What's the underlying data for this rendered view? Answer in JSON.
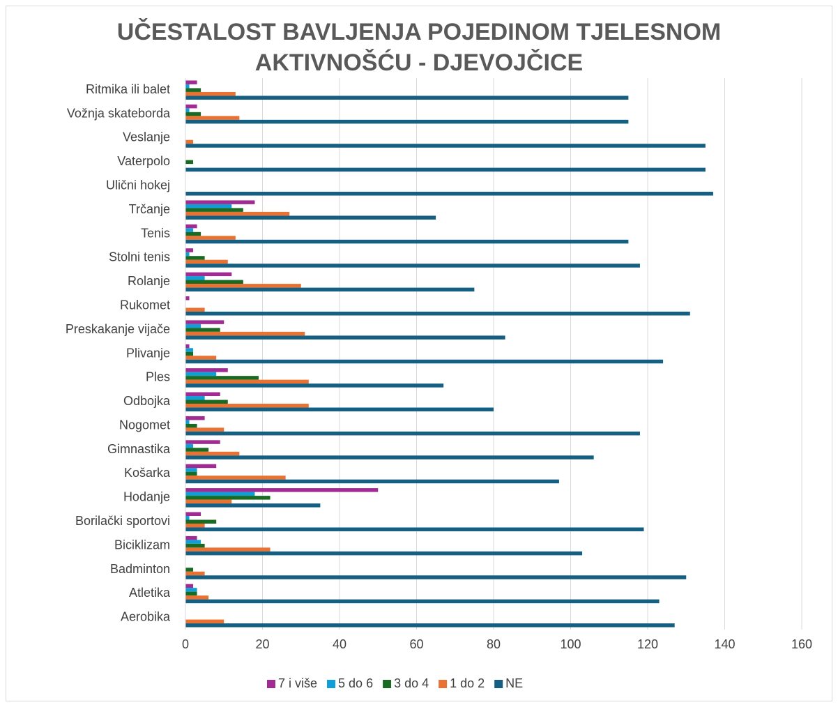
{
  "chart_data": {
    "type": "barh",
    "title": "UČESTALOST BAVLJENJA POJEDINOM TJELESNOM AKTIVNOŠĆU - DJEVOJČICE",
    "categories": [
      "Aerobika",
      "Atletika",
      "Badminton",
      "Biciklizam",
      "Borilački sportovi",
      "Hodanje",
      "Košarka",
      "Gimnastika",
      "Nogomet",
      "Odbojka",
      "Ples",
      "Plivanje",
      "Preskakanje vijače",
      "Rukomet",
      "Rolanje",
      "Stolni tenis",
      "Tenis",
      "Trčanje",
      "Ulični hokej",
      "Vaterpolo",
      "Veslanje",
      "Vožnja skateborda",
      "Ritmika ili balet"
    ],
    "series": [
      {
        "name": "7 i više",
        "color": "#a02b93",
        "values": [
          0,
          2,
          0,
          3,
          4,
          50,
          8,
          9,
          5,
          9,
          11,
          1,
          10,
          1,
          12,
          2,
          3,
          18,
          0,
          0,
          0,
          3,
          3
        ]
      },
      {
        "name": "5 do 6",
        "color": "#0f9ed5",
        "values": [
          0,
          3,
          0,
          4,
          1,
          18,
          3,
          2,
          1,
          5,
          8,
          2,
          4,
          0,
          5,
          1,
          2,
          12,
          0,
          0,
          0,
          1,
          1
        ]
      },
      {
        "name": "3 do 4",
        "color": "#196b24",
        "values": [
          0,
          3,
          2,
          5,
          8,
          22,
          3,
          6,
          3,
          11,
          19,
          2,
          9,
          0,
          15,
          5,
          4,
          15,
          0,
          2,
          0,
          4,
          4
        ]
      },
      {
        "name": "1 do 2",
        "color": "#e97132",
        "values": [
          10,
          6,
          5,
          22,
          5,
          12,
          26,
          14,
          10,
          32,
          32,
          8,
          31,
          5,
          30,
          11,
          13,
          27,
          0,
          0,
          2,
          14,
          13
        ]
      },
      {
        "name": "NE",
        "color": "#156082",
        "values": [
          127,
          123,
          130,
          103,
          119,
          35,
          97,
          106,
          118,
          80,
          67,
          124,
          83,
          131,
          75,
          118,
          115,
          65,
          137,
          135,
          135,
          115,
          115
        ]
      }
    ],
    "xlim": [
      0,
      160
    ],
    "xticks": [
      0,
      20,
      40,
      60,
      80,
      100,
      120,
      140,
      160
    ],
    "grid": true,
    "legend": "bottom"
  }
}
